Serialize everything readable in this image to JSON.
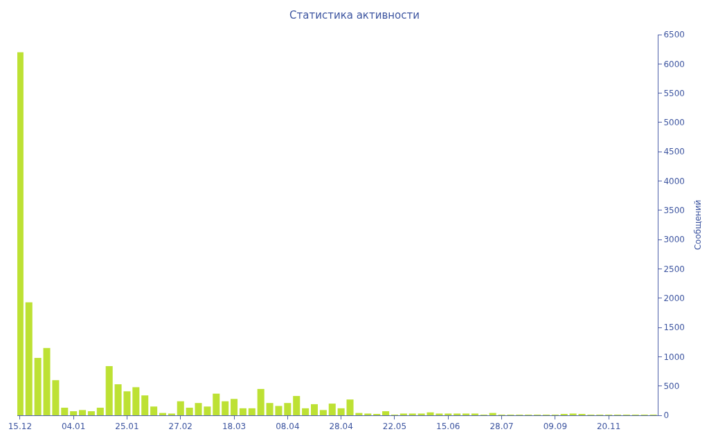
{
  "chart_data": {
    "type": "bar",
    "title": "Статистика активности",
    "ylabel": "Сообщений",
    "categories": [
      "15.12",
      null,
      null,
      null,
      null,
      null,
      "04.01",
      null,
      null,
      null,
      null,
      null,
      "25.01",
      null,
      null,
      null,
      null,
      null,
      "27.02",
      null,
      null,
      null,
      null,
      null,
      "18.03",
      null,
      null,
      null,
      null,
      null,
      "08.04",
      null,
      null,
      null,
      null,
      null,
      "28.04",
      null,
      null,
      null,
      null,
      null,
      "22.05",
      null,
      null,
      null,
      null,
      null,
      "15.06",
      null,
      null,
      null,
      null,
      null,
      "28.07",
      null,
      null,
      null,
      null,
      null,
      "09.09",
      null,
      null,
      null,
      null,
      null,
      "20.11",
      null,
      null,
      null,
      null,
      null
    ],
    "values": [
      6200,
      1930,
      980,
      1150,
      600,
      130,
      70,
      90,
      70,
      130,
      840,
      530,
      410,
      480,
      340,
      150,
      40,
      30,
      240,
      130,
      210,
      150,
      370,
      240,
      280,
      120,
      120,
      450,
      210,
      160,
      210,
      330,
      120,
      190,
      90,
      200,
      120,
      270,
      40,
      30,
      20,
      70,
      10,
      30,
      30,
      30,
      50,
      30,
      30,
      30,
      30,
      30,
      10,
      40,
      10,
      10,
      10,
      10,
      10,
      10,
      10,
      20,
      30,
      20,
      10,
      10,
      10,
      10,
      10,
      10,
      10,
      10
    ],
    "color": "#bde134",
    "ylim": [
      0,
      6500
    ],
    "yticks": [
      0,
      500,
      1000,
      1500,
      2000,
      2500,
      3000,
      3500,
      4000,
      4500,
      5000,
      5500,
      6000,
      6500
    ]
  }
}
